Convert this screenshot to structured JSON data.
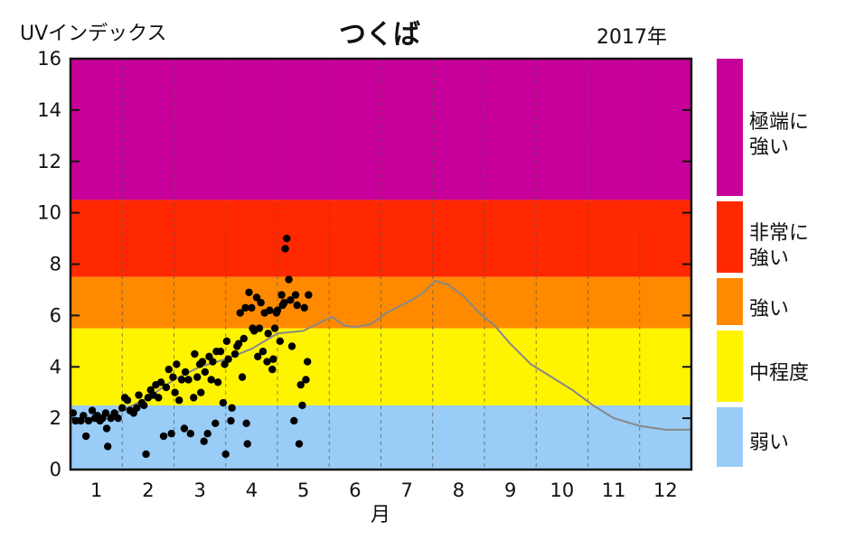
{
  "chart_data": {
    "type": "scatter",
    "title": "つくば",
    "ylabel": "UVインデックス",
    "year_label": "2017年",
    "xlabel": "月",
    "ylim": [
      0,
      16
    ],
    "xlim": [
      0.5,
      12.5
    ],
    "yticks": [
      "0",
      "2",
      "4",
      "6",
      "8",
      "10",
      "12",
      "14",
      "16"
    ],
    "xticks": [
      "1",
      "2",
      "3",
      "4",
      "5",
      "6",
      "7",
      "8",
      "9",
      "10",
      "11",
      "12"
    ],
    "grid": "vertical dashed at month boundaries",
    "bands": [
      {
        "label": "極端に\n強い",
        "from": 10.5,
        "to": 16,
        "color": "#C8009A"
      },
      {
        "label": "非常に\n強い",
        "from": 7.5,
        "to": 10.5,
        "color": "#FF2800"
      },
      {
        "label": "強い",
        "from": 5.5,
        "to": 7.5,
        "color": "#FF8A00"
      },
      {
        "label": "中程度",
        "from": 2.5,
        "to": 5.5,
        "color": "#FFF400"
      },
      {
        "label": "弱い",
        "from": 0,
        "to": 2.5,
        "color": "#99CCF6"
      }
    ],
    "series": [
      {
        "kind": "scatter",
        "color": "#000000",
        "points": [
          [
            0.55,
            2.2
          ],
          [
            0.6,
            1.9
          ],
          [
            0.7,
            1.9
          ],
          [
            0.75,
            2.1
          ],
          [
            0.8,
            1.3
          ],
          [
            0.85,
            1.9
          ],
          [
            0.92,
            2.3
          ],
          [
            0.97,
            2.0
          ],
          [
            1.02,
            2.1
          ],
          [
            1.07,
            1.9
          ],
          [
            1.12,
            2.0
          ],
          [
            1.18,
            2.2
          ],
          [
            1.2,
            1.6
          ],
          [
            1.22,
            0.9
          ],
          [
            1.28,
            2.0
          ],
          [
            1.35,
            2.2
          ],
          [
            1.42,
            2.0
          ],
          [
            1.5,
            2.4
          ],
          [
            1.55,
            2.8
          ],
          [
            1.6,
            2.7
          ],
          [
            1.65,
            2.3
          ],
          [
            1.72,
            2.2
          ],
          [
            1.78,
            2.4
          ],
          [
            1.82,
            2.9
          ],
          [
            1.88,
            2.6
          ],
          [
            1.92,
            2.5
          ],
          [
            1.96,
            0.6
          ],
          [
            2.0,
            2.8
          ],
          [
            2.05,
            3.1
          ],
          [
            2.1,
            2.9
          ],
          [
            2.15,
            3.3
          ],
          [
            2.2,
            2.8
          ],
          [
            2.25,
            3.4
          ],
          [
            2.3,
            1.3
          ],
          [
            2.35,
            3.2
          ],
          [
            2.4,
            3.9
          ],
          [
            2.45,
            1.4
          ],
          [
            2.48,
            3.6
          ],
          [
            2.52,
            3.0
          ],
          [
            2.55,
            4.1
          ],
          [
            2.6,
            2.7
          ],
          [
            2.65,
            3.5
          ],
          [
            2.7,
            1.6
          ],
          [
            2.72,
            3.8
          ],
          [
            2.78,
            3.5
          ],
          [
            2.82,
            1.4
          ],
          [
            2.88,
            2.8
          ],
          [
            2.9,
            4.5
          ],
          [
            2.95,
            3.6
          ],
          [
            3.0,
            4.1
          ],
          [
            3.02,
            3.0
          ],
          [
            3.05,
            4.2
          ],
          [
            3.08,
            1.1
          ],
          [
            3.1,
            3.8
          ],
          [
            3.15,
            1.4
          ],
          [
            3.18,
            4.4
          ],
          [
            3.22,
            3.5
          ],
          [
            3.25,
            4.2
          ],
          [
            3.3,
            1.8
          ],
          [
            3.32,
            4.6
          ],
          [
            3.35,
            3.4
          ],
          [
            3.4,
            4.6
          ],
          [
            3.45,
            2.6
          ],
          [
            3.48,
            4.1
          ],
          [
            3.5,
            0.6
          ],
          [
            3.52,
            5.0
          ],
          [
            3.55,
            4.3
          ],
          [
            3.6,
            1.9
          ],
          [
            3.62,
            2.4
          ],
          [
            3.68,
            4.5
          ],
          [
            3.72,
            4.8
          ],
          [
            3.75,
            4.9
          ],
          [
            3.78,
            6.1
          ],
          [
            3.82,
            3.6
          ],
          [
            3.85,
            5.1
          ],
          [
            3.88,
            6.3
          ],
          [
            3.9,
            1.8
          ],
          [
            3.92,
            1.0
          ],
          [
            3.95,
            6.9
          ],
          [
            4.0,
            6.3
          ],
          [
            4.02,
            5.5
          ],
          [
            4.05,
            5.4
          ],
          [
            4.1,
            6.7
          ],
          [
            4.12,
            4.4
          ],
          [
            4.15,
            5.5
          ],
          [
            4.18,
            6.5
          ],
          [
            4.22,
            4.6
          ],
          [
            4.25,
            6.1
          ],
          [
            4.3,
            4.2
          ],
          [
            4.32,
            5.3
          ],
          [
            4.35,
            6.2
          ],
          [
            4.4,
            3.9
          ],
          [
            4.42,
            4.3
          ],
          [
            4.45,
            5.5
          ],
          [
            4.48,
            6.1
          ],
          [
            4.5,
            6.2
          ],
          [
            4.55,
            5.0
          ],
          [
            4.58,
            6.8
          ],
          [
            4.6,
            6.4
          ],
          [
            4.63,
            6.5
          ],
          [
            4.65,
            8.6
          ],
          [
            4.68,
            9.0
          ],
          [
            4.72,
            7.4
          ],
          [
            4.75,
            6.6
          ],
          [
            4.78,
            4.8
          ],
          [
            4.82,
            1.9
          ],
          [
            4.85,
            6.8
          ],
          [
            4.88,
            6.4
          ],
          [
            4.92,
            1.0
          ],
          [
            4.95,
            3.3
          ],
          [
            4.98,
            2.5
          ],
          [
            5.02,
            6.3
          ],
          [
            5.05,
            3.5
          ],
          [
            5.08,
            4.2
          ],
          [
            5.1,
            6.8
          ]
        ]
      },
      {
        "kind": "line",
        "color": "#888888",
        "points": [
          [
            0.5,
            1.8
          ],
          [
            1.0,
            1.95
          ],
          [
            1.5,
            2.3
          ],
          [
            2.0,
            2.8
          ],
          [
            2.5,
            3.5
          ],
          [
            3.0,
            4.0
          ],
          [
            3.5,
            4.3
          ],
          [
            4.0,
            4.7
          ],
          [
            4.5,
            5.3
          ],
          [
            5.0,
            5.4
          ],
          [
            5.3,
            5.7
          ],
          [
            5.55,
            5.95
          ],
          [
            5.8,
            5.6
          ],
          [
            6.0,
            5.55
          ],
          [
            6.3,
            5.65
          ],
          [
            6.6,
            6.1
          ],
          [
            7.0,
            6.5
          ],
          [
            7.3,
            6.85
          ],
          [
            7.55,
            7.35
          ],
          [
            7.8,
            7.2
          ],
          [
            8.1,
            6.75
          ],
          [
            8.4,
            6.1
          ],
          [
            8.7,
            5.6
          ],
          [
            9.0,
            4.9
          ],
          [
            9.4,
            4.1
          ],
          [
            9.8,
            3.6
          ],
          [
            10.2,
            3.1
          ],
          [
            10.6,
            2.5
          ],
          [
            11.0,
            2.0
          ],
          [
            11.5,
            1.7
          ],
          [
            12.0,
            1.55
          ],
          [
            12.5,
            1.55
          ]
        ]
      }
    ]
  }
}
